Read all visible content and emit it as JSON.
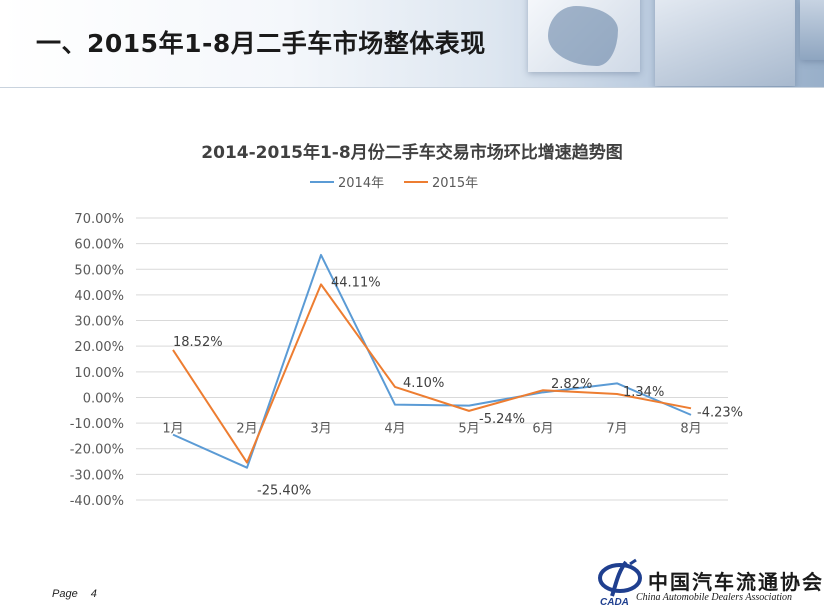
{
  "header": {
    "title": "一、2015年1-8月二手车市场整体表现"
  },
  "footer": {
    "page_label": "Page",
    "page_number": "4"
  },
  "logo": {
    "abbr": "CADA",
    "name_cn": "中国汽车流通协会",
    "name_en": "China Automobile Dealers Association"
  },
  "colors": {
    "series_2014": "#5b9bd5",
    "series_2015": "#ed7d31",
    "grid": "#d9d9d9"
  },
  "chart_data": {
    "type": "line",
    "title": "2014-2015年1-8月份二手车交易市场环比增速趋势图",
    "categories": [
      "1月",
      "2月",
      "3月",
      "4月",
      "5月",
      "6月",
      "7月",
      "8月"
    ],
    "series": [
      {
        "name": "2014年",
        "values": [
          -14.5,
          -27.4,
          55.6,
          -2.8,
          -3.2,
          2.0,
          5.5,
          -6.8
        ]
      },
      {
        "name": "2015年",
        "values": [
          18.52,
          -25.4,
          44.11,
          4.1,
          -5.24,
          2.82,
          1.34,
          -4.23
        ]
      }
    ],
    "data_labels": [
      "18.52%",
      "-25.40%",
      "44.11%",
      "4.10%",
      "-5.24%",
      "2.82%",
      "1.34%",
      "-4.23%"
    ],
    "y_ticks": [
      "70.00%",
      "60.00%",
      "50.00%",
      "40.00%",
      "30.00%",
      "20.00%",
      "10.00%",
      "0.00%",
      "-10.00%",
      "-20.00%",
      "-30.00%",
      "-40.00%"
    ],
    "ylim": [
      -40,
      70
    ],
    "grid": true,
    "legend_position": "top"
  }
}
